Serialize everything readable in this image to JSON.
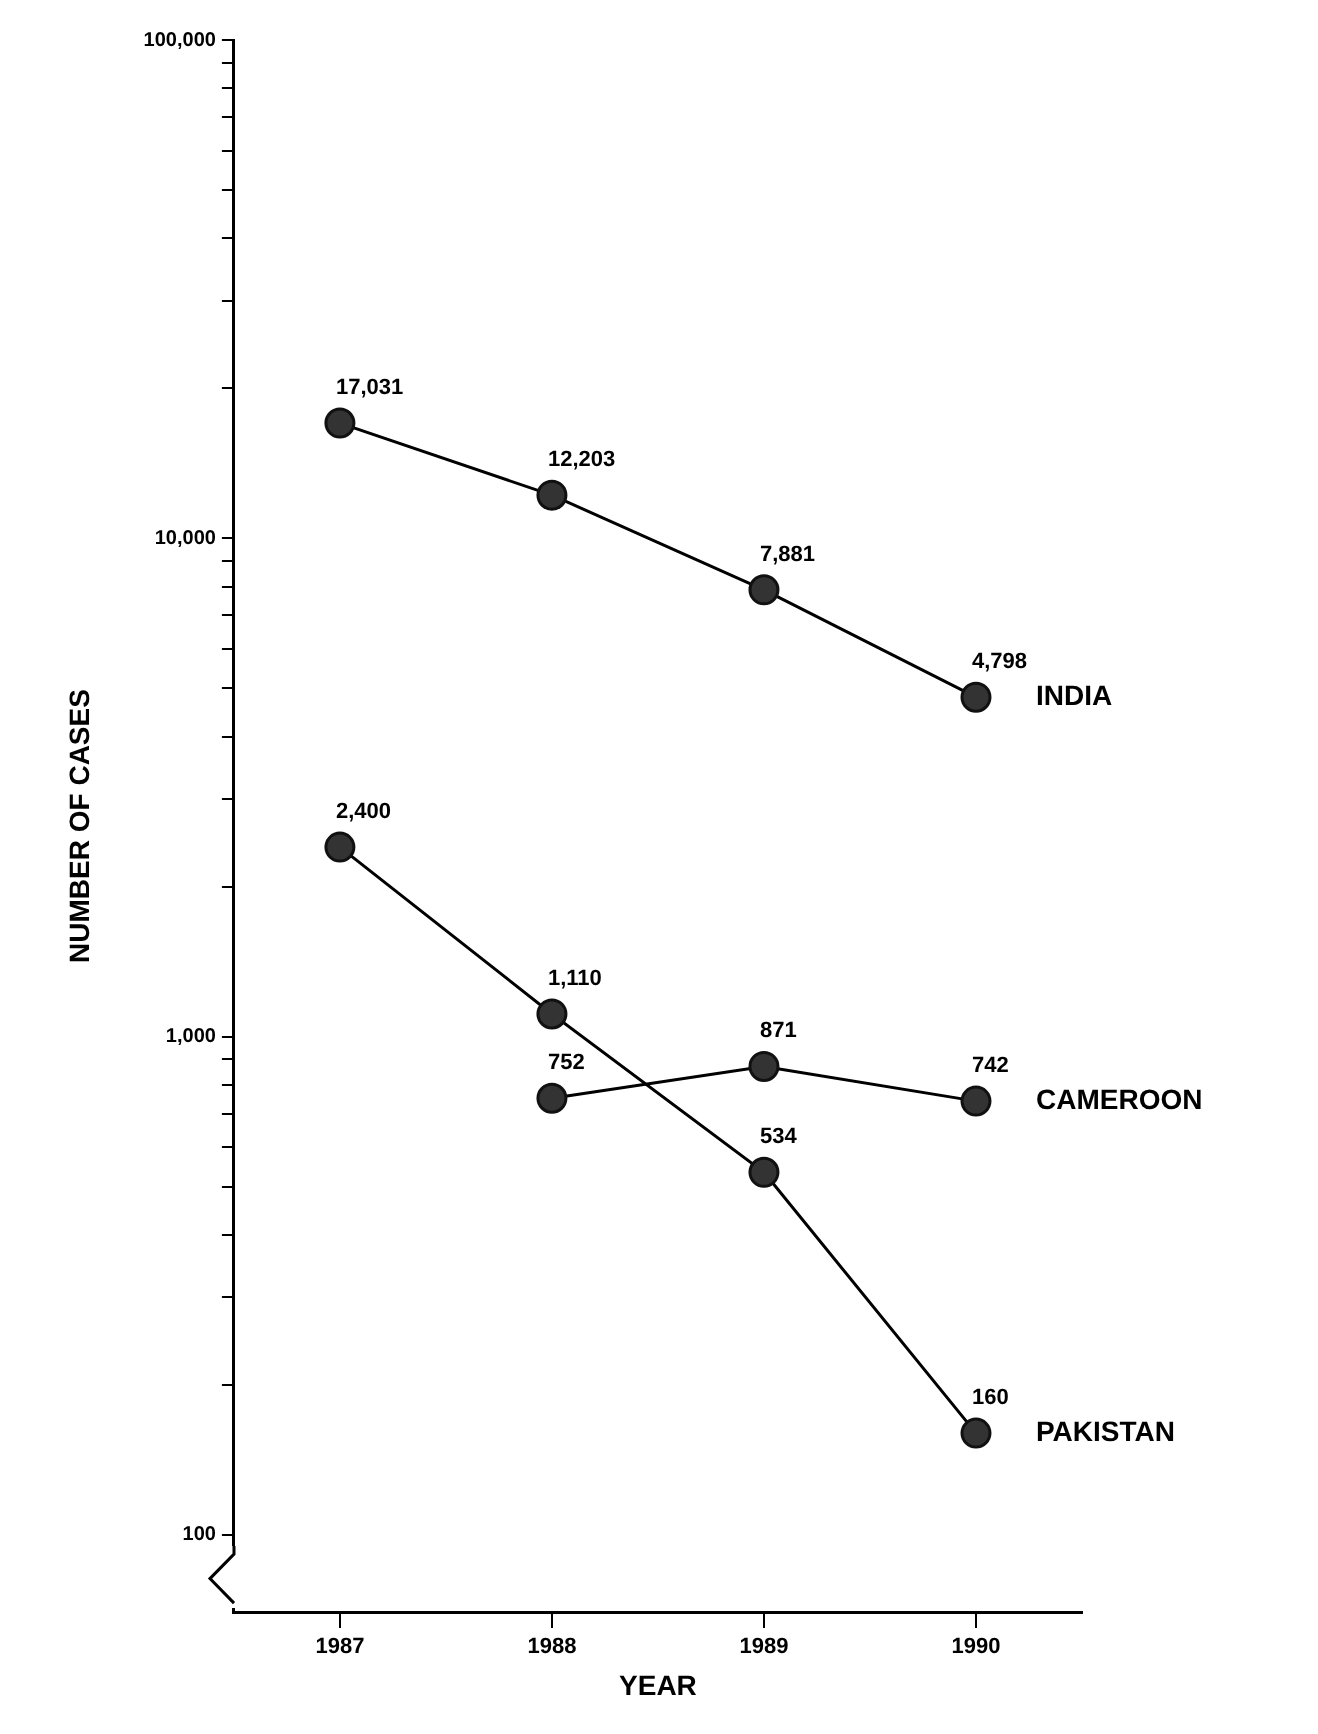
{
  "chart_data": {
    "type": "line",
    "xlabel": "YEAR",
    "ylabel": "NUMBER OF CASES",
    "categories": [
      "1987",
      "1988",
      "1989",
      "1990"
    ],
    "series": [
      {
        "name": "INDIA",
        "color": "#333333",
        "values": [
          17031,
          12203,
          7881,
          4798
        ],
        "value_labels": [
          "17,031",
          "12,203",
          "7,881",
          "4,798"
        ]
      },
      {
        "name": "CAMEROON",
        "color": "#333333",
        "values": [
          null,
          752,
          871,
          742
        ],
        "value_labels": [
          null,
          "752",
          "871",
          "742"
        ]
      },
      {
        "name": "PAKISTAN",
        "color": "#333333",
        "values": [
          2400,
          1110,
          534,
          160
        ],
        "value_labels": [
          "2,400",
          "1,110",
          "534",
          "160"
        ]
      }
    ],
    "log": "y",
    "ylim": [
      70,
      100000
    ],
    "yticks": [
      100,
      {
        "value": 200,
        "label": null
      },
      {
        "value": 300,
        "label": null
      },
      {
        "value": 400,
        "label": null
      },
      {
        "value": 500,
        "label": null
      },
      {
        "value": 600,
        "label": null
      },
      {
        "value": 700,
        "label": null
      },
      {
        "value": 800,
        "label": null
      },
      {
        "value": 900,
        "label": null
      },
      {
        "value": 1000,
        "label": "1,000"
      },
      {
        "value": 2000,
        "label": null
      },
      {
        "value": 3000,
        "label": null
      },
      {
        "value": 4000,
        "label": null
      },
      {
        "value": 5000,
        "label": null
      },
      {
        "value": 6000,
        "label": null
      },
      {
        "value": 7000,
        "label": null
      },
      {
        "value": 8000,
        "label": null
      },
      {
        "value": 9000,
        "label": null
      },
      {
        "value": 10000,
        "label": "10,000"
      },
      {
        "value": 20000,
        "label": null
      },
      {
        "value": 30000,
        "label": null
      },
      {
        "value": 40000,
        "label": null
      },
      {
        "value": 50000,
        "label": null
      },
      {
        "value": 60000,
        "label": null
      },
      {
        "value": 70000,
        "label": null
      },
      {
        "value": 80000,
        "label": null
      },
      {
        "value": 90000,
        "label": null
      },
      {
        "value": 100000,
        "label": "100,000"
      }
    ],
    "grid": false,
    "legend": false,
    "marker": "circle",
    "line_style": "solid"
  }
}
